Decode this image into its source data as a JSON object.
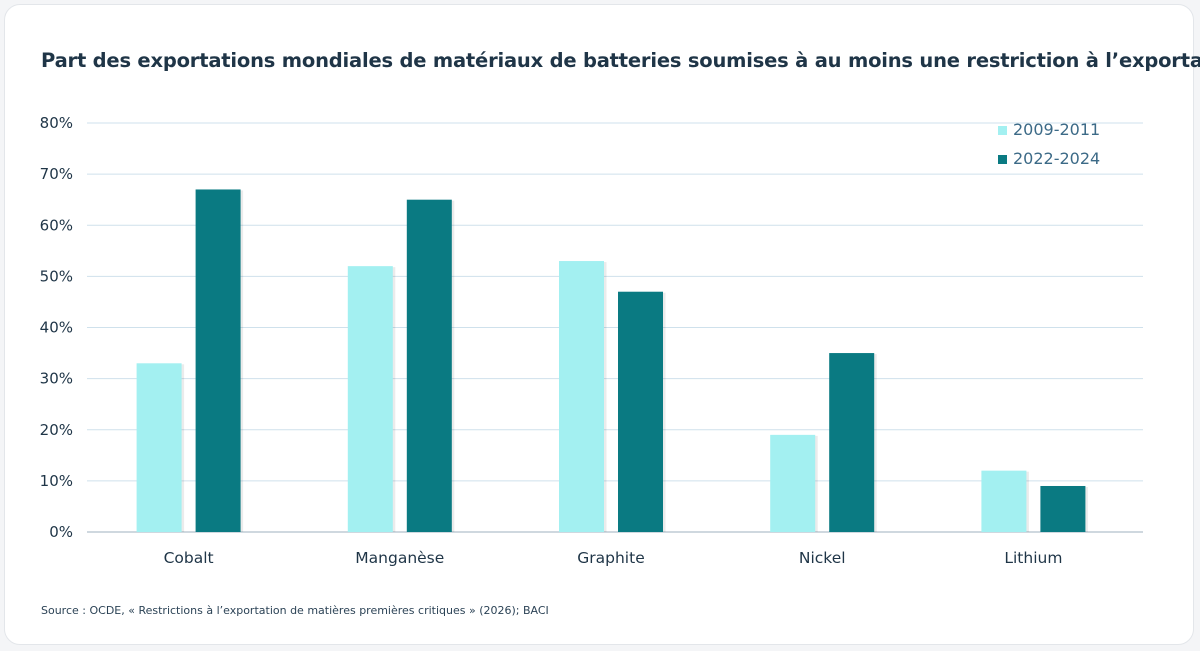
{
  "title": "Part des exportations mondiales de matériaux de batteries soumises à au moins une restriction à l’exportation",
  "source": "Source : OCDE, « Restrictions à l’exportation de matières premières critiques » (2026); BACI",
  "colors": {
    "series_1": "#a3f0f1",
    "series_2": "#0a7a82",
    "grid": "#cfe1ec",
    "tick_text": "#1f3547",
    "legend_text": "#3c6a87"
  },
  "chart_data": {
    "type": "bar",
    "categories": [
      "Cobalt",
      "Manganèse",
      "Graphite",
      "Nickel",
      "Lithium"
    ],
    "series": [
      {
        "name": "2009-2011",
        "values": [
          33,
          52,
          53,
          19,
          12
        ]
      },
      {
        "name": "2022-2024",
        "values": [
          67,
          65,
          47,
          35,
          9
        ]
      }
    ],
    "ylim": [
      0,
      80
    ],
    "y_ticks": [
      "0%",
      "10%",
      "20%",
      "30%",
      "40%",
      "50%",
      "60%",
      "70%",
      "80%"
    ],
    "y_tick_values": [
      0,
      10,
      20,
      30,
      40,
      50,
      60,
      70,
      80
    ],
    "grid": true,
    "legend_position": "top-right"
  }
}
